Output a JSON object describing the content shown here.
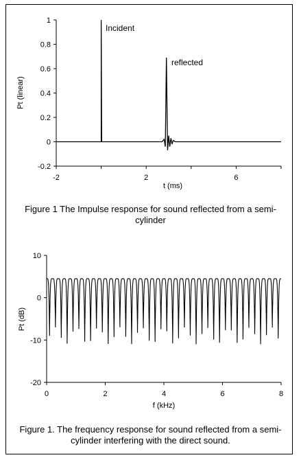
{
  "chart_data": [
    {
      "type": "line",
      "xlabel": "t (ms)",
      "ylabel": "Pt (linear)",
      "xlim": [
        -2,
        8
      ],
      "ylim": [
        -0.2,
        1
      ],
      "x_ticks": [
        "-2",
        "2",
        "6"
      ],
      "y_ticks": [
        "1",
        "0.8",
        "0.6",
        "0.4",
        "0.2",
        "0",
        "-0.2"
      ],
      "annotations": [
        "Incident",
        "reflected"
      ],
      "series": [
        {
          "x": [
            -2,
            0,
            0,
            0.02,
            2.7,
            2.8,
            2.85,
            2.9,
            2.95,
            3.0,
            3.05,
            3.1,
            3.15,
            3.2,
            3.3,
            8
          ],
          "y": [
            0,
            0,
            1,
            0,
            0,
            0.02,
            -0.04,
            0.69,
            -0.07,
            0.05,
            -0.04,
            0.03,
            -0.02,
            0.01,
            0,
            0
          ]
        }
      ],
      "grid": false,
      "caption": "Figure 1 The Impulse response for sound reflected from a semi-cylinder"
    },
    {
      "type": "line",
      "xlabel": "f (kHz)",
      "ylabel": "Pt (dB)",
      "xlim": [
        0,
        8
      ],
      "ylim": [
        -20,
        10
      ],
      "x_ticks": [
        "0",
        "2",
        "4",
        "6",
        "8"
      ],
      "y_ticks": [
        "10",
        "0",
        "-10",
        "-20"
      ],
      "series": [
        {
          "description_of_shape": "periodic comb-filter ripple",
          "period_khz": 0.2,
          "peak_db": 4.5,
          "trough_db_range": [
            -11,
            -7
          ]
        }
      ],
      "grid": false,
      "caption": "Figure 1. The frequency response for sound reflected from a semi-cylinder interfering with the direct sound."
    }
  ]
}
